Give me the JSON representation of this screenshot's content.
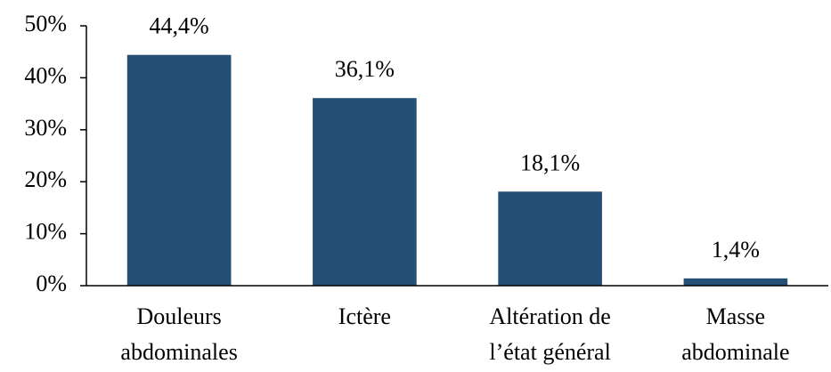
{
  "chart_data": {
    "type": "bar",
    "categories": [
      [
        "Douleurs",
        "abdominales"
      ],
      [
        "Ictère"
      ],
      [
        "Altération de",
        "l’état général"
      ],
      [
        "Masse",
        "abdominale"
      ]
    ],
    "values": [
      44.4,
      36.1,
      18.1,
      1.4
    ],
    "value_labels": [
      "44,4%",
      "36,1%",
      "18,1%",
      "1,4%"
    ],
    "color": "#264f78",
    "ylim": [
      0,
      50
    ],
    "yticks": [
      {
        "value": 0,
        "label": "0%"
      },
      {
        "value": 10,
        "label": "10%"
      },
      {
        "value": 20,
        "label": "20%"
      },
      {
        "value": 30,
        "label": "30%"
      },
      {
        "value": 40,
        "label": "40%"
      },
      {
        "value": 50,
        "label": "50%"
      }
    ],
    "grid": false
  }
}
